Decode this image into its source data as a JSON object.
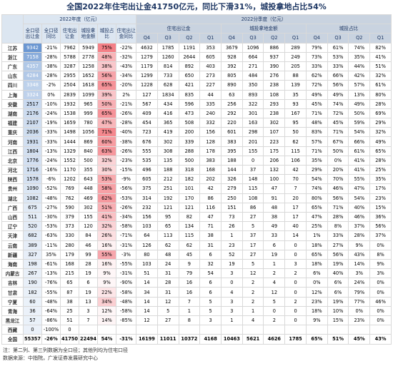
{
  "title": "全国2022年住宅出让金41750亿元，同比下滑31%，城投拿地占比54%",
  "table": {
    "group_headers": [
      "2022年度（亿元）",
      "2022分季度（亿元）"
    ],
    "column_headers": [
      "全口径出让金",
      "全口径同比",
      "住宅出让金",
      "城投拿地金额",
      "城投占比",
      "住宅出让金同比"
    ],
    "quarter_groups": [
      "住宅出让金",
      "城投拿地金额",
      "城投占比"
    ],
    "quarters": [
      "Q4",
      "Q3",
      "Q2",
      "Q1"
    ],
    "rows": [
      [
        "江苏",
        "9342",
        "-21%",
        "7962",
        "5949",
        "75%",
        "-22%",
        "4632",
        "1785",
        "1191",
        "353",
        "3679",
        "1096",
        "886",
        "289",
        "79%",
        "61%",
        "74%",
        "82%"
      ],
      [
        "浙江",
        "7158",
        "-28%",
        "5788",
        "2778",
        "48%",
        "-32%",
        "1279",
        "1260",
        "2644",
        "605",
        "928",
        "664",
        "937",
        "249",
        "73%",
        "53%",
        "35%",
        "41%"
      ],
      [
        "广东",
        "4357",
        "-38%",
        "3287",
        "1258",
        "38%",
        "-43%",
        "1179",
        "814",
        "892",
        "403",
        "392",
        "271",
        "390",
        "205",
        "33%",
        "33%",
        "44%",
        "51%"
      ],
      [
        "山东",
        "4284",
        "-28%",
        "2955",
        "1652",
        "56%",
        "-34%",
        "1299",
        "733",
        "650",
        "273",
        "805",
        "484",
        "276",
        "88",
        "62%",
        "66%",
        "42%",
        "32%"
      ],
      [
        "四川",
        "3348",
        "-2%",
        "2504",
        "1618",
        "65%",
        "-20%",
        "1228",
        "628",
        "421",
        "227",
        "890",
        "350",
        "238",
        "139",
        "72%",
        "56%",
        "57%",
        "61%"
      ],
      [
        "上海",
        "3324",
        "0%",
        "2839",
        "1099",
        "39%",
        "2%",
        "127",
        "1834",
        "835",
        "44",
        "63",
        "893",
        "108",
        "35",
        "49%",
        "49%",
        "13%",
        "80%"
      ],
      [
        "安徽",
        "2517",
        "-10%",
        "1932",
        "965",
        "50%",
        "-21%",
        "567",
        "434",
        "596",
        "335",
        "256",
        "322",
        "293",
        "93",
        "45%",
        "74%",
        "49%",
        "28%"
      ],
      [
        "湖南",
        "2176",
        "-24%",
        "1538",
        "999",
        "65%",
        "-26%",
        "409",
        "416",
        "473",
        "240",
        "292",
        "301",
        "238",
        "167",
        "71%",
        "72%",
        "50%",
        "69%"
      ],
      [
        "福建",
        "2107",
        "-19%",
        "1659",
        "780",
        "47%",
        "-28%",
        "454",
        "365",
        "508",
        "332",
        "220",
        "163",
        "302",
        "95",
        "48%",
        "45%",
        "59%",
        "29%"
      ],
      [
        "重庆",
        "2036",
        "-33%",
        "1498",
        "1056",
        "71%",
        "-40%",
        "723",
        "419",
        "200",
        "156",
        "601",
        "298",
        "107",
        "50",
        "83%",
        "71%",
        "54%",
        "32%"
      ],
      [
        "河南",
        "1931",
        "-33%",
        "1444",
        "869",
        "60%",
        "-38%",
        "676",
        "302",
        "339",
        "128",
        "383",
        "201",
        "223",
        "62",
        "57%",
        "67%",
        "66%",
        "49%"
      ],
      [
        "江西",
        "1804",
        "-13%",
        "1329",
        "840",
        "63%",
        "-26%",
        "555",
        "308",
        "288",
        "178",
        "395",
        "155",
        "175",
        "115",
        "71%",
        "50%",
        "61%",
        "65%"
      ],
      [
        "北京",
        "1776",
        "-24%",
        "1552",
        "500",
        "32%",
        "-23%",
        "535",
        "135",
        "500",
        "383",
        "188",
        "0",
        "206",
        "106",
        "35%",
        "0%",
        "41%",
        "28%"
      ],
      [
        "河北",
        "1716",
        "-16%",
        "1170",
        "355",
        "30%",
        "-15%",
        "496",
        "188",
        "318",
        "168",
        "144",
        "37",
        "132",
        "42",
        "29%",
        "20%",
        "41%",
        "25%"
      ],
      [
        "陕西",
        "1578",
        "-6%",
        "1202",
        "643",
        "53%",
        "-9%",
        "605",
        "212",
        "182",
        "202",
        "326",
        "148",
        "100",
        "70",
        "54%",
        "70%",
        "55%",
        "35%"
      ],
      [
        "贵州",
        "1090",
        "-52%",
        "769",
        "448",
        "58%",
        "-56%",
        "375",
        "251",
        "101",
        "42",
        "279",
        "115",
        "47",
        "7",
        "74%",
        "46%",
        "47%",
        "17%"
      ],
      [
        "湖北",
        "1082",
        "-48%",
        "762",
        "469",
        "62%",
        "-53%",
        "314",
        "192",
        "170",
        "86",
        "250",
        "108",
        "91",
        "20",
        "80%",
        "56%",
        "54%",
        "23%"
      ],
      [
        "广西",
        "675",
        "-27%",
        "590",
        "302",
        "51%",
        "-26%",
        "232",
        "121",
        "121",
        "116",
        "151",
        "86",
        "48",
        "17",
        "65%",
        "71%",
        "40%",
        "15%"
      ],
      [
        "山西",
        "511",
        "-30%",
        "379",
        "155",
        "41%",
        "-34%",
        "156",
        "95",
        "82",
        "47",
        "73",
        "27",
        "38",
        "17",
        "47%",
        "28%",
        "46%",
        "36%"
      ],
      [
        "辽宁",
        "520",
        "-53%",
        "373",
        "120",
        "32%",
        "-58%",
        "103",
        "65",
        "134",
        "71",
        "26",
        "5",
        "49",
        "40",
        "25%",
        "8%",
        "37%",
        "56%"
      ],
      [
        "天津",
        "682",
        "-63%",
        "330",
        "84",
        "26%",
        "-71%",
        "64",
        "113",
        "115",
        "38",
        "1",
        "37",
        "33",
        "14",
        "1%",
        "33%",
        "28%",
        "37%"
      ],
      [
        "云南",
        "389",
        "-11%",
        "280",
        "46",
        "16%",
        "-31%",
        "126",
        "62",
        "62",
        "31",
        "23",
        "17",
        "6",
        "0",
        "18%",
        "27%",
        "9%",
        "0%"
      ],
      [
        "新疆",
        "327",
        "35%",
        "179",
        "99",
        "55%",
        "-3%",
        "80",
        "48",
        "45",
        "6",
        "52",
        "27",
        "19",
        "0",
        "65%",
        "56%",
        "43%",
        "8%"
      ],
      [
        "海南",
        "198",
        "-61%",
        "168",
        "28",
        "16%",
        "-55%",
        "103",
        "24",
        "9",
        "32",
        "19",
        "5",
        "1",
        "3",
        "18%",
        "19%",
        "14%",
        "9%"
      ],
      [
        "内蒙古",
        "267",
        "-13%",
        "215",
        "19",
        "9%",
        "-31%",
        "51",
        "31",
        "79",
        "54",
        "3",
        "12",
        "2",
        "2",
        "6%",
        "40%",
        "3%",
        "3%"
      ],
      [
        "吉林",
        "190",
        "-76%",
        "65",
        "6",
        "9%",
        "-90%",
        "14",
        "28",
        "16",
        "6",
        "0",
        "2",
        "4",
        "0",
        "0%",
        "6%",
        "24%",
        "0%"
      ],
      [
        "甘肃",
        "182",
        "-55%",
        "87",
        "19",
        "22%",
        "-58%",
        "34",
        "31",
        "16",
        "6",
        "4",
        "2",
        "12",
        "0",
        "12%",
        "6%",
        "79%",
        "0%"
      ],
      [
        "宁夏",
        "60",
        "-48%",
        "38",
        "13",
        "34%",
        "-48%",
        "14",
        "12",
        "7",
        "5",
        "3",
        "2",
        "5",
        "2",
        "23%",
        "19%",
        "77%",
        "46%"
      ],
      [
        "青海",
        "36",
        "-64%",
        "25",
        "3",
        "12%",
        "-58%",
        "14",
        "5",
        "1",
        "5",
        "3",
        "1",
        "0",
        "0",
        "18%",
        "10%",
        "0%",
        "0%"
      ],
      [
        "黑龙江",
        "57",
        "-86%",
        "51",
        "7",
        "14%",
        "-85%",
        "12",
        "27",
        "8",
        "3",
        "1",
        "4",
        "2",
        "0",
        "9%",
        "15%",
        "23%",
        "0%"
      ],
      [
        "西藏",
        "0",
        "-100%",
        "0",
        null,
        null,
        null,
        null,
        null,
        null,
        null,
        null,
        null,
        null,
        null,
        null,
        null,
        null,
        null
      ],
      [
        "全国",
        "55357",
        "-26%",
        "41750",
        "22494",
        "54%",
        "-31%",
        "16199",
        "11011",
        "10372",
        "4168",
        "10463",
        "5621",
        "4626",
        "1785",
        "65%",
        "51%",
        "45%",
        "43%"
      ]
    ]
  },
  "notes": [
    "注：第二列、第三列数据为全口径；其他列均为住宅口径",
    "数据来源：中指院，广发证券发展研究中心"
  ]
}
